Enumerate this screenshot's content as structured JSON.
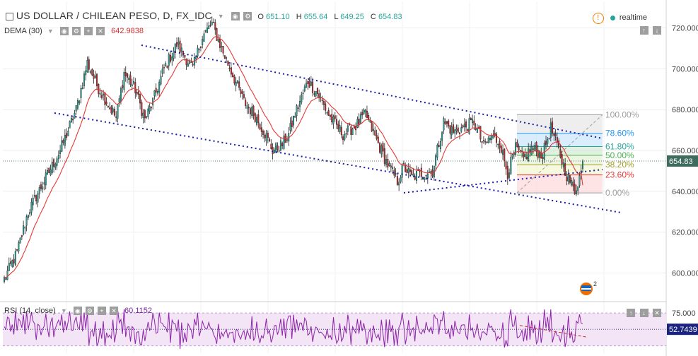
{
  "header": {
    "title": "US DOLLAR / CHILEAN PESO, D, FX_IDC",
    "o_label": "O",
    "o": "651.10",
    "h_label": "H",
    "h": "655.64",
    "l_label": "L",
    "l": "649.25",
    "c_label": "C",
    "c": "654.83",
    "realtime": "realtime"
  },
  "indicator": {
    "name": "DEMA (30)",
    "value": "642.9838"
  },
  "rsi": {
    "name": "RSI (14, close)",
    "value": "60.1152",
    "last": "52.7439",
    "top_tick": "75.000"
  },
  "price_tag": "654.83",
  "tools": {
    "eye": "◉",
    "gear": "⚙",
    "plus": "+",
    "close": "✕",
    "up": "↑",
    "down": "↓"
  },
  "colors": {
    "up": "#26a69a",
    "down": "#c62828",
    "dema": "#e53935",
    "channel": "#1a1aa8",
    "rsi": "#8e24aa",
    "rsi_band": "#f3e5f5",
    "price_tag": "#3f6b5f",
    "rsi_tag": "#1a237e"
  },
  "chart_data": {
    "type": "candlestick",
    "title": "US DOLLAR / CHILEAN PESO, D, FX_IDC",
    "ylim": [
      587,
      733
    ],
    "y_ticks": [
      600,
      620,
      640,
      660,
      680,
      700,
      720
    ],
    "grid": true,
    "close_path": [
      [
        0,
        597
      ],
      [
        8,
        610
      ],
      [
        15,
        630
      ],
      [
        25,
        645
      ],
      [
        35,
        660
      ],
      [
        45,
        680
      ],
      [
        52,
        703
      ],
      [
        58,
        692
      ],
      [
        64,
        684
      ],
      [
        70,
        676
      ],
      [
        75,
        698
      ],
      [
        82,
        690
      ],
      [
        88,
        675
      ],
      [
        93,
        684
      ],
      [
        100,
        700
      ],
      [
        108,
        712
      ],
      [
        113,
        706
      ],
      [
        118,
        700
      ],
      [
        124,
        716
      ],
      [
        130,
        722
      ],
      [
        137,
        708
      ],
      [
        143,
        697
      ],
      [
        150,
        684
      ],
      [
        157,
        677
      ],
      [
        162,
        670
      ],
      [
        168,
        660
      ],
      [
        174,
        663
      ],
      [
        178,
        668
      ],
      [
        182,
        678
      ],
      [
        190,
        694
      ],
      [
        196,
        688
      ],
      [
        204,
        676
      ],
      [
        212,
        668
      ],
      [
        220,
        672
      ],
      [
        226,
        678
      ],
      [
        233,
        665
      ],
      [
        240,
        653
      ],
      [
        246,
        645
      ],
      [
        250,
        652
      ],
      [
        255,
        647
      ],
      [
        262,
        649
      ],
      [
        268,
        650
      ],
      [
        275,
        674
      ],
      [
        281,
        669
      ],
      [
        287,
        671
      ],
      [
        294,
        674
      ],
      [
        300,
        662
      ],
      [
        305,
        667
      ],
      [
        310,
        664
      ],
      [
        315,
        649
      ],
      [
        320,
        661
      ],
      [
        325,
        656
      ],
      [
        330,
        661
      ],
      [
        337,
        658
      ],
      [
        342,
        671
      ],
      [
        346,
        662
      ],
      [
        352,
        648
      ],
      [
        357,
        640
      ],
      [
        362,
        652
      ]
    ],
    "dema": {
      "name": "DEMA (30)",
      "last": 642.9838
    },
    "fib_levels": [
      {
        "label": "100.00%",
        "price": 677.5
      },
      {
        "label": "78.60%",
        "price": 668.4
      },
      {
        "label": "61.80%",
        "price": 661.9
      },
      {
        "label": "50.00%",
        "price": 657.6
      },
      {
        "label": "38.20%",
        "price": 653.0
      },
      {
        "label": "23.60%",
        "price": 648.0
      },
      {
        "label": "0.00%",
        "price": 639.2
      }
    ],
    "last_price": 654.83,
    "rsi": {
      "name": "RSI (14, close)",
      "value": 60.1152,
      "last": 52.7439,
      "upper": 75
    }
  }
}
